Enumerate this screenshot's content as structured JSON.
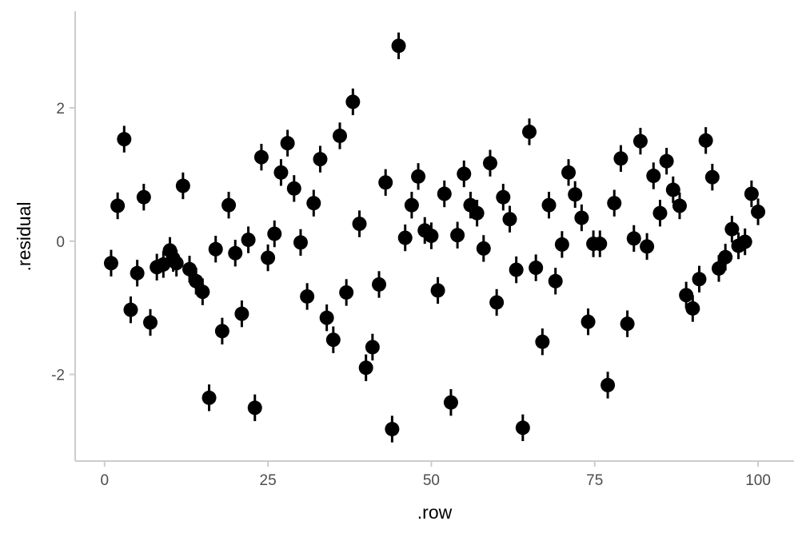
{
  "chart_data": {
    "type": "scatter",
    "title": "",
    "xlabel": ".row",
    "ylabel": ".residual",
    "xlim": [
      -4.5,
      105.5
    ],
    "ylim": [
      -3.3,
      3.45
    ],
    "x_ticks": [
      0,
      25,
      50,
      75,
      100
    ],
    "x_tick_labels": [
      "0",
      "25",
      "50",
      "75",
      "100"
    ],
    "y_ticks": [
      -2,
      0,
      2
    ],
    "y_tick_labels": [
      "-2",
      "0",
      "2"
    ],
    "grid": false,
    "error_bar_half_width": 0.2,
    "colors": {
      "points": "#000000",
      "axis_line": "#cccccc",
      "tick_text": "#4d4d4d",
      "title_text": "#000000",
      "background": "#ffffff"
    },
    "points": [
      {
        "x": 1,
        "y": -0.33
      },
      {
        "x": 2,
        "y": 0.53
      },
      {
        "x": 3,
        "y": 1.53
      },
      {
        "x": 4,
        "y": -1.03
      },
      {
        "x": 5,
        "y": -0.48
      },
      {
        "x": 6,
        "y": 0.66
      },
      {
        "x": 7,
        "y": -1.22
      },
      {
        "x": 8,
        "y": -0.39
      },
      {
        "x": 9,
        "y": -0.35
      },
      {
        "x": 10,
        "y": -0.14
      },
      {
        "x": 10.5,
        "y": -0.26
      },
      {
        "x": 11,
        "y": -0.33
      },
      {
        "x": 12,
        "y": 0.83
      },
      {
        "x": 13,
        "y": -0.42
      },
      {
        "x": 14,
        "y": -0.6
      },
      {
        "x": 15,
        "y": -0.76
      },
      {
        "x": 16,
        "y": -2.35
      },
      {
        "x": 17,
        "y": -0.12
      },
      {
        "x": 18,
        "y": -1.35
      },
      {
        "x": 19,
        "y": 0.54
      },
      {
        "x": 20,
        "y": -0.18
      },
      {
        "x": 21,
        "y": -1.09
      },
      {
        "x": 22,
        "y": 0.02
      },
      {
        "x": 23,
        "y": -2.5
      },
      {
        "x": 24,
        "y": 1.26
      },
      {
        "x": 25,
        "y": -0.25
      },
      {
        "x": 26,
        "y": 0.11
      },
      {
        "x": 27,
        "y": 1.03
      },
      {
        "x": 28,
        "y": 1.47
      },
      {
        "x": 29,
        "y": 0.79
      },
      {
        "x": 30,
        "y": -0.02
      },
      {
        "x": 31,
        "y": -0.83
      },
      {
        "x": 32,
        "y": 0.57
      },
      {
        "x": 33,
        "y": 1.23
      },
      {
        "x": 34,
        "y": -1.15
      },
      {
        "x": 35,
        "y": -1.48
      },
      {
        "x": 36,
        "y": 1.58
      },
      {
        "x": 37,
        "y": -0.77
      },
      {
        "x": 38,
        "y": 2.09
      },
      {
        "x": 39,
        "y": 0.26
      },
      {
        "x": 40,
        "y": -1.9
      },
      {
        "x": 41,
        "y": -1.59
      },
      {
        "x": 42,
        "y": -0.65
      },
      {
        "x": 43,
        "y": 0.88
      },
      {
        "x": 44,
        "y": -2.82
      },
      {
        "x": 45,
        "y": 2.93
      },
      {
        "x": 46,
        "y": 0.05
      },
      {
        "x": 47,
        "y": 0.54
      },
      {
        "x": 48,
        "y": 0.97
      },
      {
        "x": 49,
        "y": 0.16
      },
      {
        "x": 50,
        "y": 0.08
      },
      {
        "x": 51,
        "y": -0.74
      },
      {
        "x": 52,
        "y": 0.71
      },
      {
        "x": 53,
        "y": -2.42
      },
      {
        "x": 54,
        "y": 0.09
      },
      {
        "x": 55,
        "y": 1.01
      },
      {
        "x": 56,
        "y": 0.54
      },
      {
        "x": 57,
        "y": 0.42
      },
      {
        "x": 58,
        "y": -0.11
      },
      {
        "x": 59,
        "y": 1.17
      },
      {
        "x": 60,
        "y": -0.92
      },
      {
        "x": 61,
        "y": 0.66
      },
      {
        "x": 62,
        "y": 0.33
      },
      {
        "x": 63,
        "y": -0.43
      },
      {
        "x": 64,
        "y": -2.8
      },
      {
        "x": 65,
        "y": 1.64
      },
      {
        "x": 66,
        "y": -0.4
      },
      {
        "x": 67,
        "y": -1.51
      },
      {
        "x": 68,
        "y": 0.54
      },
      {
        "x": 69,
        "y": -0.6
      },
      {
        "x": 70,
        "y": -0.05
      },
      {
        "x": 71,
        "y": 1.03
      },
      {
        "x": 72,
        "y": 0.7
      },
      {
        "x": 73,
        "y": 0.35
      },
      {
        "x": 74,
        "y": -1.21
      },
      {
        "x": 74.8,
        "y": -0.04
      },
      {
        "x": 75.8,
        "y": -0.04
      },
      {
        "x": 77,
        "y": -2.16
      },
      {
        "x": 78,
        "y": 0.57
      },
      {
        "x": 79,
        "y": 1.24
      },
      {
        "x": 80,
        "y": -1.24
      },
      {
        "x": 81,
        "y": 0.04
      },
      {
        "x": 82,
        "y": 1.5
      },
      {
        "x": 83,
        "y": -0.08
      },
      {
        "x": 84,
        "y": 0.98
      },
      {
        "x": 85,
        "y": 0.42
      },
      {
        "x": 86,
        "y": 1.2
      },
      {
        "x": 87,
        "y": 0.77
      },
      {
        "x": 88,
        "y": 0.53
      },
      {
        "x": 89,
        "y": -0.81
      },
      {
        "x": 90,
        "y": -1.01
      },
      {
        "x": 91,
        "y": -0.57
      },
      {
        "x": 92,
        "y": 1.51
      },
      {
        "x": 93,
        "y": 0.96
      },
      {
        "x": 94,
        "y": -0.41
      },
      {
        "x": 95,
        "y": -0.24
      },
      {
        "x": 96,
        "y": 0.18
      },
      {
        "x": 97,
        "y": -0.07
      },
      {
        "x": 98,
        "y": -0.01
      },
      {
        "x": 99,
        "y": 0.71
      },
      {
        "x": 100,
        "y": 0.44
      }
    ]
  }
}
